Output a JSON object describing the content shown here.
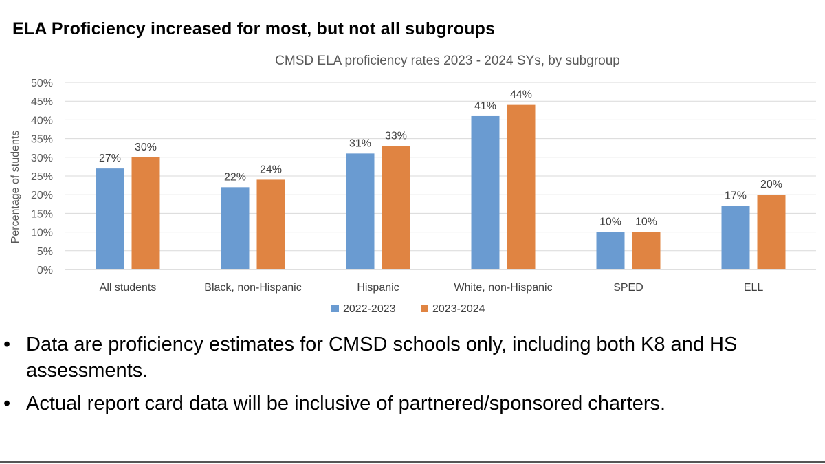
{
  "slide": {
    "title": "ELA Proficiency increased for most, but not all subgroups",
    "bullet_symbol": "•",
    "bullets": [
      "Data are proficiency estimates for CMSD schools only, including both K8 and HS assessments.",
      "Actual report card data will be inclusive of partnered/sponsored charters."
    ]
  },
  "chart_data": {
    "type": "bar",
    "title": "CMSD ELA proficiency rates 2023 - 2024 SYs, by subgroup",
    "xlabel": "",
    "ylabel": "Percentage of students",
    "ylim": [
      0,
      50
    ],
    "ytick_step": 5,
    "ytick_suffix": "%",
    "grid": true,
    "legend_position": "bottom",
    "categories": [
      "All students",
      "Black, non-Hispanic",
      "Hispanic",
      "White, non-Hispanic",
      "SPED",
      "ELL"
    ],
    "series": [
      {
        "name": "2022-2023",
        "color": "#6a9bd1",
        "values": [
          27,
          22,
          31,
          41,
          10,
          17
        ],
        "labels": [
          "27%",
          "22%",
          "31%",
          "41%",
          "10%",
          "17%"
        ]
      },
      {
        "name": "2023-2024",
        "color": "#e08442",
        "values": [
          30,
          24,
          33,
          44,
          10,
          20
        ],
        "labels": [
          "30%",
          "24%",
          "33%",
          "44%",
          "10%",
          "20%"
        ]
      }
    ]
  }
}
